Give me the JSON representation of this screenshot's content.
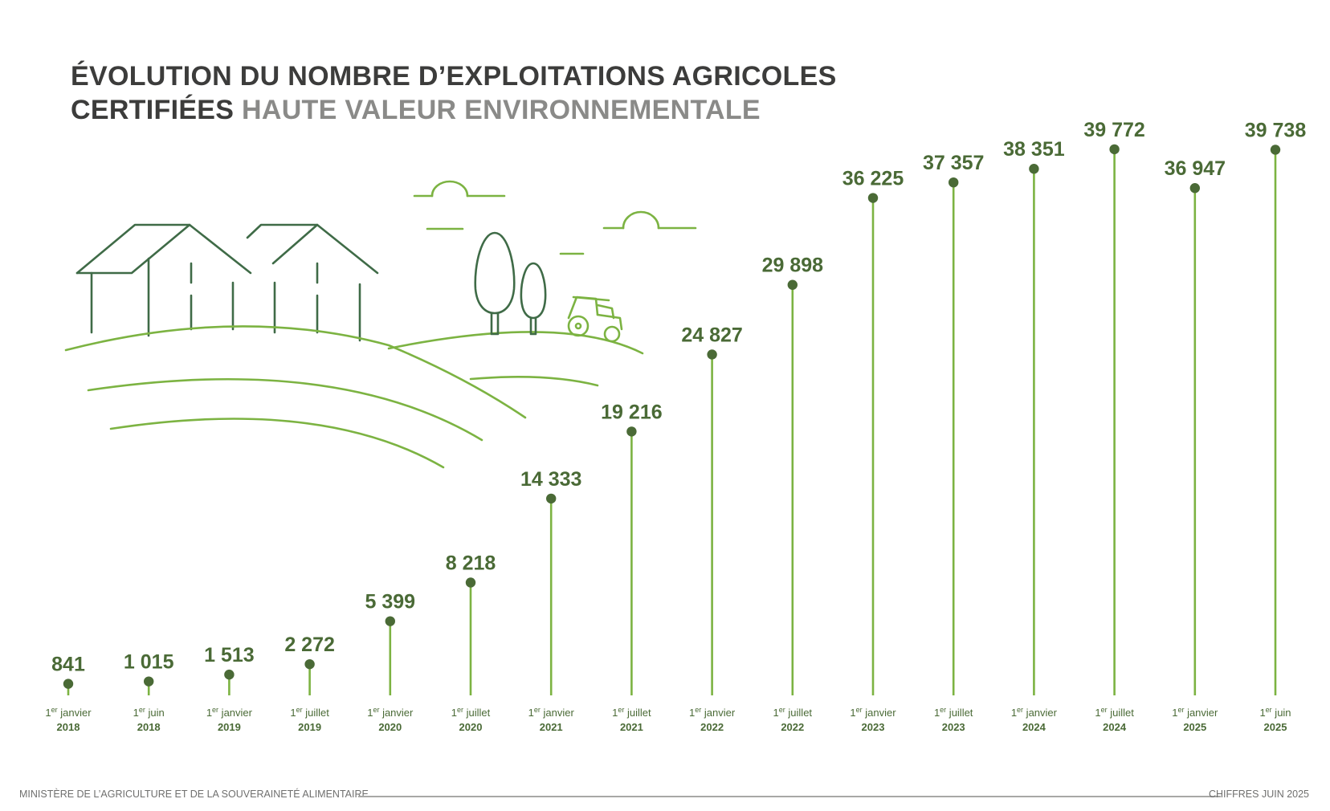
{
  "title": {
    "line1": "ÉVOLUTION DU NOMBRE D’EXPLOITATIONS AGRICOLES",
    "line2_dark": "CERTIFIÉES",
    "line2_light": "HAUTE VALEUR ENVIRONNEMENTALE"
  },
  "footer": {
    "left": "MINISTÈRE DE L’AGRICULTURE ET DE LA SOUVERAINETÉ ALIMENTAIRE",
    "right": "CHIFFRES JUIN 2025"
  },
  "colors": {
    "stem": "#7cb342",
    "dot": "#4a6a36",
    "label": "#4a6a36",
    "illustration_dark": "#3f6b47",
    "illustration_light": "#7cb342"
  },
  "chart_data": {
    "type": "lollipop",
    "title": "ÉVOLUTION DU NOMBRE D’EXPLOITATIONS AGRICOLES CERTIFIÉES HAUTE VALEUR ENVIRONNEMENTALE",
    "categories": [
      {
        "ord": "1",
        "sup": "er",
        "day": "janvier",
        "year": "2018"
      },
      {
        "ord": "1",
        "sup": "er",
        "day": "juin",
        "year": "2018"
      },
      {
        "ord": "1",
        "sup": "er",
        "day": "janvier",
        "year": "2019"
      },
      {
        "ord": "1",
        "sup": "er",
        "day": "juillet",
        "year": "2019"
      },
      {
        "ord": "1",
        "sup": "er",
        "day": "janvier",
        "year": "2020"
      },
      {
        "ord": "1",
        "sup": "er",
        "day": "juillet",
        "year": "2020"
      },
      {
        "ord": "1",
        "sup": "er",
        "day": "janvier",
        "year": "2021"
      },
      {
        "ord": "1",
        "sup": "er",
        "day": "juillet",
        "year": "2021"
      },
      {
        "ord": "1",
        "sup": "er",
        "day": "janvier",
        "year": "2022"
      },
      {
        "ord": "1",
        "sup": "er",
        "day": "juillet",
        "year": "2022"
      },
      {
        "ord": "1",
        "sup": "er",
        "day": "janvier",
        "year": "2023"
      },
      {
        "ord": "1",
        "sup": "er",
        "day": "juillet",
        "year": "2023"
      },
      {
        "ord": "1",
        "sup": "er",
        "day": "janvier",
        "year": "2024"
      },
      {
        "ord": "1",
        "sup": "er",
        "day": "juillet",
        "year": "2024"
      },
      {
        "ord": "1",
        "sup": "er",
        "day": "janvier",
        "year": "2025"
      },
      {
        "ord": "1",
        "sup": "er",
        "day": "juin",
        "year": "2025"
      }
    ],
    "values": [
      841,
      1015,
      1513,
      2272,
      5399,
      8218,
      14333,
      19216,
      24827,
      29898,
      36225,
      37357,
      38351,
      39772,
      36947,
      39738
    ],
    "value_labels": [
      "841",
      "1 015",
      "1 513",
      "2 272",
      "5 399",
      "8 218",
      "14 333",
      "19 216",
      "24 827",
      "29 898",
      "36 225",
      "37 357",
      "38 351",
      "39 772",
      "36 947",
      "39 738"
    ],
    "ylim": [
      0,
      40000
    ],
    "grid": false,
    "legend": "none"
  }
}
